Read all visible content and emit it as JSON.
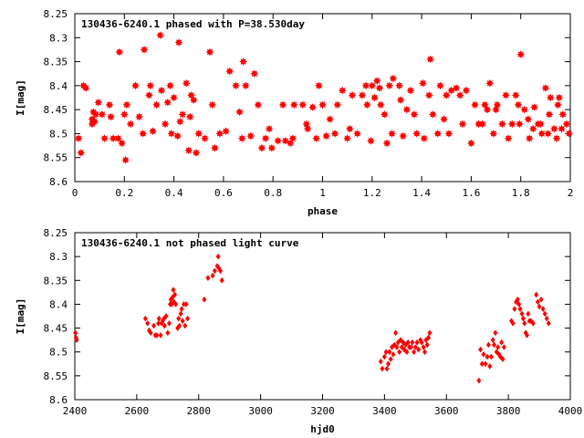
{
  "chart_data": [
    {
      "type": "scatter",
      "title": "130436-6240.1 phased with P=38.530day",
      "xlabel": "phase",
      "ylabel": "I[mag]",
      "xlim": [
        0,
        2
      ],
      "ylim": [
        8.6,
        8.25
      ],
      "y_inverted": true,
      "xticks": [
        0,
        0.2,
        0.4,
        0.6,
        0.8,
        1,
        1.2,
        1.4,
        1.6,
        1.8,
        2
      ],
      "xtick_labels": [
        "0",
        "0.2",
        "0.4",
        "0.6",
        "0.8",
        "1",
        "1.2",
        "1.4",
        "1.6",
        "1.8",
        "2"
      ],
      "yticks": [
        8.25,
        8.3,
        8.35,
        8.4,
        8.45,
        8.5,
        8.55,
        8.6
      ],
      "ytick_labels": [
        "8.25",
        "8.3",
        "8.35",
        "8.4",
        "8.45",
        "8.5",
        "8.55",
        "8.6"
      ],
      "marker": "star",
      "color": "#ff0000",
      "grid": false,
      "points": [
        [
          0.015,
          8.51
        ],
        [
          0.025,
          8.54
        ],
        [
          0.035,
          8.4
        ],
        [
          0.045,
          8.405
        ],
        [
          0.07,
          8.47
        ],
        [
          0.07,
          8.48
        ],
        [
          0.075,
          8.455
        ],
        [
          0.08,
          8.475
        ],
        [
          0.085,
          8.46
        ],
        [
          0.095,
          8.435
        ],
        [
          0.11,
          8.46
        ],
        [
          0.12,
          8.51
        ],
        [
          0.14,
          8.44
        ],
        [
          0.145,
          8.465
        ],
        [
          0.155,
          8.51
        ],
        [
          0.18,
          8.33
        ],
        [
          0.175,
          8.51
        ],
        [
          0.19,
          8.52
        ],
        [
          0.2,
          8.46
        ],
        [
          0.205,
          8.555
        ],
        [
          0.21,
          8.44
        ],
        [
          0.225,
          8.48
        ],
        [
          0.245,
          8.4
        ],
        [
          0.26,
          8.465
        ],
        [
          0.275,
          8.5
        ],
        [
          0.28,
          8.325
        ],
        [
          0.3,
          8.42
        ],
        [
          0.305,
          8.4
        ],
        [
          0.315,
          8.495
        ],
        [
          0.33,
          8.44
        ],
        [
          0.345,
          8.295
        ],
        [
          0.35,
          8.41
        ],
        [
          0.365,
          8.48
        ],
        [
          0.375,
          8.435
        ],
        [
          0.385,
          8.4
        ],
        [
          0.39,
          8.5
        ],
        [
          0.4,
          8.425
        ],
        [
          0.415,
          8.505
        ],
        [
          0.42,
          8.31
        ],
        [
          0.425,
          8.475
        ],
        [
          0.435,
          8.46
        ],
        [
          0.45,
          8.395
        ],
        [
          0.46,
          8.535
        ],
        [
          0.465,
          8.465
        ],
        [
          0.47,
          8.42
        ],
        [
          0.48,
          8.43
        ],
        [
          0.49,
          8.54
        ],
        [
          0.5,
          8.5
        ],
        [
          0.525,
          8.51
        ],
        [
          0.545,
          8.33
        ],
        [
          0.555,
          8.44
        ],
        [
          0.565,
          8.53
        ],
        [
          0.585,
          8.5
        ],
        [
          0.61,
          8.495
        ],
        [
          0.625,
          8.37
        ],
        [
          0.65,
          8.4
        ],
        [
          0.665,
          8.455
        ],
        [
          0.675,
          8.51
        ],
        [
          0.68,
          8.35
        ],
        [
          0.69,
          8.4
        ],
        [
          0.71,
          8.505
        ],
        [
          0.725,
          8.375
        ],
        [
          0.74,
          8.44
        ],
        [
          0.755,
          8.53
        ],
        [
          0.77,
          8.51
        ],
        [
          0.785,
          8.49
        ],
        [
          0.795,
          8.53
        ],
        [
          0.82,
          8.515
        ],
        [
          0.84,
          8.44
        ],
        [
          0.85,
          8.515
        ],
        [
          0.87,
          8.52
        ],
        [
          0.88,
          8.51
        ],
        [
          0.885,
          8.44
        ],
        [
          0.92,
          8.44
        ],
        [
          0.935,
          8.48
        ],
        [
          0.94,
          8.49
        ],
        [
          0.96,
          8.445
        ],
        [
          0.975,
          8.51
        ],
        [
          0.985,
          8.4
        ],
        [
          1.0,
          8.44
        ],
        [
          1.015,
          8.505
        ],
        [
          1.03,
          8.47
        ],
        [
          1.05,
          8.5
        ],
        [
          1.06,
          8.44
        ],
        [
          1.08,
          8.41
        ],
        [
          1.1,
          8.51
        ],
        [
          1.11,
          8.49
        ],
        [
          1.12,
          8.42
        ],
        [
          1.14,
          8.5
        ],
        [
          1.16,
          8.42
        ],
        [
          1.175,
          8.4
        ],
        [
          1.18,
          8.44
        ],
        [
          1.195,
          8.515
        ],
        [
          1.2,
          8.4
        ],
        [
          1.21,
          8.425
        ],
        [
          1.22,
          8.39
        ],
        [
          1.23,
          8.405
        ],
        [
          1.235,
          8.44
        ],
        [
          1.25,
          8.46
        ],
        [
          1.26,
          8.52
        ],
        [
          1.27,
          8.4
        ],
        [
          1.28,
          8.5
        ],
        [
          1.285,
          8.385
        ],
        [
          1.31,
          8.4
        ],
        [
          1.315,
          8.43
        ],
        [
          1.325,
          8.505
        ],
        [
          1.34,
          8.45
        ],
        [
          1.355,
          8.41
        ],
        [
          1.37,
          8.46
        ],
        [
          1.38,
          8.5
        ],
        [
          1.405,
          8.395
        ],
        [
          1.41,
          8.51
        ],
        [
          1.43,
          8.42
        ],
        [
          1.435,
          8.345
        ],
        [
          1.445,
          8.46
        ],
        [
          1.465,
          8.5
        ],
        [
          1.475,
          8.4
        ],
        [
          1.49,
          8.47
        ],
        [
          1.5,
          8.42
        ],
        [
          1.51,
          8.5
        ],
        [
          1.52,
          8.41
        ],
        [
          1.54,
          8.405
        ],
        [
          1.555,
          8.42
        ],
        [
          1.565,
          8.48
        ],
        [
          1.58,
          8.41
        ],
        [
          1.6,
          8.52
        ],
        [
          1.615,
          8.44
        ],
        [
          1.63,
          8.48
        ],
        [
          1.645,
          8.48
        ],
        [
          1.655,
          8.44
        ],
        [
          1.665,
          8.45
        ],
        [
          1.675,
          8.395
        ],
        [
          1.69,
          8.5
        ],
        [
          1.7,
          8.45
        ],
        [
          1.705,
          8.44
        ],
        [
          1.725,
          8.48
        ],
        [
          1.74,
          8.42
        ],
        [
          1.75,
          8.51
        ],
        [
          1.765,
          8.48
        ],
        [
          1.78,
          8.42
        ],
        [
          1.79,
          8.44
        ],
        [
          1.795,
          8.48
        ],
        [
          1.8,
          8.335
        ],
        [
          1.815,
          8.45
        ],
        [
          1.83,
          8.47
        ],
        [
          1.835,
          8.51
        ],
        [
          1.85,
          8.49
        ],
        [
          1.855,
          8.445
        ],
        [
          1.87,
          8.48
        ],
        [
          1.88,
          8.48
        ],
        [
          1.885,
          8.5
        ],
        [
          1.9,
          8.405
        ],
        [
          1.91,
          8.5
        ],
        [
          1.915,
          8.46
        ],
        [
          1.92,
          8.425
        ],
        [
          1.935,
          8.49
        ],
        [
          1.945,
          8.51
        ],
        [
          1.95,
          8.44
        ],
        [
          1.955,
          8.425
        ],
        [
          1.965,
          8.49
        ],
        [
          1.97,
          8.46
        ],
        [
          1.985,
          8.48
        ],
        [
          1.995,
          8.5
        ]
      ]
    },
    {
      "type": "scatter",
      "title": "130436-6240.1 not phased light curve",
      "xlabel": "hjd0",
      "ylabel": "I[mag]",
      "xlim": [
        2400,
        4000
      ],
      "ylim": [
        8.6,
        8.25
      ],
      "y_inverted": true,
      "xticks": [
        2400,
        2600,
        2800,
        3000,
        3200,
        3400,
        3600,
        3800,
        4000
      ],
      "xtick_labels": [
        "2400",
        "2600",
        "2800",
        "3000",
        "3200",
        "3400",
        "3600",
        "3800",
        "4000"
      ],
      "yticks": [
        8.25,
        8.3,
        8.35,
        8.4,
        8.45,
        8.5,
        8.55,
        8.6
      ],
      "ytick_labels": [
        "8.25",
        "8.3",
        "8.35",
        "8.4",
        "8.45",
        "8.5",
        "8.55",
        "8.6"
      ],
      "marker": "diamond",
      "color": "#ff0000",
      "grid": false,
      "points": [
        [
          2402,
          8.46
        ],
        [
          2404,
          8.47
        ],
        [
          2406,
          8.475
        ],
        [
          2628,
          8.43
        ],
        [
          2635,
          8.44
        ],
        [
          2640,
          8.455
        ],
        [
          2645,
          8.46
        ],
        [
          2655,
          8.445
        ],
        [
          2660,
          8.465
        ],
        [
          2665,
          8.465
        ],
        [
          2670,
          8.44
        ],
        [
          2672,
          8.43
        ],
        [
          2677,
          8.465
        ],
        [
          2680,
          8.44
        ],
        [
          2684,
          8.435
        ],
        [
          2688,
          8.43
        ],
        [
          2690,
          8.445
        ],
        [
          2695,
          8.425
        ],
        [
          2700,
          8.46
        ],
        [
          2705,
          8.44
        ],
        [
          2708,
          8.4
        ],
        [
          2710,
          8.39
        ],
        [
          2713,
          8.4
        ],
        [
          2716,
          8.385
        ],
        [
          2718,
          8.37
        ],
        [
          2720,
          8.395
        ],
        [
          2723,
          8.38
        ],
        [
          2726,
          8.4
        ],
        [
          2732,
          8.45
        ],
        [
          2735,
          8.43
        ],
        [
          2738,
          8.445
        ],
        [
          2742,
          8.42
        ],
        [
          2745,
          8.41
        ],
        [
          2748,
          8.435
        ],
        [
          2752,
          8.4
        ],
        [
          2756,
          8.445
        ],
        [
          2760,
          8.4
        ],
        [
          2764,
          8.43
        ],
        [
          2818,
          8.39
        ],
        [
          2830,
          8.345
        ],
        [
          2845,
          8.34
        ],
        [
          2852,
          8.33
        ],
        [
          2860,
          8.32
        ],
        [
          2863,
          8.3
        ],
        [
          2866,
          8.325
        ],
        [
          2870,
          8.33
        ],
        [
          2875,
          8.35
        ],
        [
          3388,
          8.52
        ],
        [
          3393,
          8.535
        ],
        [
          3400,
          8.51
        ],
        [
          3405,
          8.5
        ],
        [
          3408,
          8.535
        ],
        [
          3412,
          8.525
        ],
        [
          3416,
          8.5
        ],
        [
          3420,
          8.515
        ],
        [
          3424,
          8.49
        ],
        [
          3428,
          8.505
        ],
        [
          3432,
          8.485
        ],
        [
          3436,
          8.46
        ],
        [
          3440,
          8.49
        ],
        [
          3444,
          8.48
        ],
        [
          3448,
          8.5
        ],
        [
          3452,
          8.475
        ],
        [
          3456,
          8.49
        ],
        [
          3460,
          8.48
        ],
        [
          3464,
          8.495
        ],
        [
          3468,
          8.485
        ],
        [
          3472,
          8.5
        ],
        [
          3476,
          8.48
        ],
        [
          3480,
          8.49
        ],
        [
          3486,
          8.49
        ],
        [
          3490,
          8.48
        ],
        [
          3495,
          8.5
        ],
        [
          3500,
          8.49
        ],
        [
          3505,
          8.48
        ],
        [
          3510,
          8.495
        ],
        [
          3516,
          8.475
        ],
        [
          3520,
          8.48
        ],
        [
          3526,
          8.49
        ],
        [
          3530,
          8.5
        ],
        [
          3534,
          8.475
        ],
        [
          3538,
          8.485
        ],
        [
          3542,
          8.47
        ],
        [
          3546,
          8.46
        ],
        [
          3705,
          8.56
        ],
        [
          3710,
          8.495
        ],
        [
          3715,
          8.525
        ],
        [
          3720,
          8.505
        ],
        [
          3726,
          8.525
        ],
        [
          3732,
          8.51
        ],
        [
          3736,
          8.485
        ],
        [
          3740,
          8.53
        ],
        [
          3745,
          8.51
        ],
        [
          3750,
          8.475
        ],
        [
          3754,
          8.485
        ],
        [
          3758,
          8.46
        ],
        [
          3762,
          8.5
        ],
        [
          3766,
          8.49
        ],
        [
          3770,
          8.505
        ],
        [
          3774,
          8.51
        ],
        [
          3778,
          8.48
        ],
        [
          3782,
          8.515
        ],
        [
          3786,
          8.49
        ],
        [
          3810,
          8.435
        ],
        [
          3815,
          8.44
        ],
        [
          3820,
          8.41
        ],
        [
          3825,
          8.395
        ],
        [
          3830,
          8.39
        ],
        [
          3834,
          8.4
        ],
        [
          3838,
          8.41
        ],
        [
          3844,
          8.42
        ],
        [
          3848,
          8.43
        ],
        [
          3852,
          8.44
        ],
        [
          3856,
          8.46
        ],
        [
          3860,
          8.465
        ],
        [
          3864,
          8.42
        ],
        [
          3868,
          8.435
        ],
        [
          3873,
          8.435
        ],
        [
          3880,
          8.44
        ],
        [
          3890,
          8.38
        ],
        [
          3895,
          8.395
        ],
        [
          3900,
          8.405
        ],
        [
          3906,
          8.39
        ],
        [
          3912,
          8.41
        ],
        [
          3918,
          8.42
        ],
        [
          3924,
          8.43
        ],
        [
          3930,
          8.44
        ]
      ]
    }
  ]
}
